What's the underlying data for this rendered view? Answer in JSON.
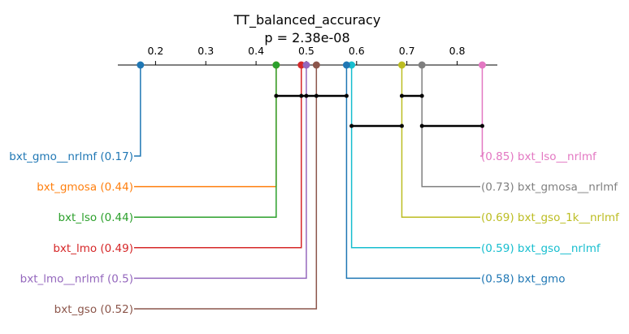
{
  "chart_data": {
    "type": "critical-difference",
    "title": "TT_balanced_accuracy",
    "subtitle": "p = 2.38e-08",
    "xlim": [
      0.125,
      0.88
    ],
    "ticks": [
      0.2,
      0.3,
      0.4,
      0.5,
      0.6,
      0.7,
      0.8
    ],
    "tick_labels": [
      "0.2",
      "0.3",
      "0.4",
      "0.5",
      "0.6",
      "0.7",
      "0.8"
    ],
    "methods": [
      {
        "name": "bxt_gmo__nrlmf",
        "value": 0.17,
        "label": "bxt_gmo__nrlmf (0.17)",
        "side": "left",
        "color": "#1f77b4"
      },
      {
        "name": "bxt_gmosa",
        "value": 0.44,
        "label": "bxt_gmosa (0.44)",
        "side": "left",
        "color": "#ff7f0e"
      },
      {
        "name": "bxt_lso",
        "value": 0.44,
        "label": "bxt_lso (0.44)",
        "side": "left",
        "color": "#2ca02c"
      },
      {
        "name": "bxt_lmo",
        "value": 0.49,
        "label": "bxt_lmo (0.49)",
        "side": "left",
        "color": "#d62728"
      },
      {
        "name": "bxt_lmo__nrlmf",
        "value": 0.5,
        "label": "bxt_lmo__nrlmf (0.5)",
        "side": "left",
        "color": "#9467bd"
      },
      {
        "name": "bxt_gso",
        "value": 0.52,
        "label": "bxt_gso (0.52)",
        "side": "left",
        "color": "#8c564b"
      },
      {
        "name": "bxt_lso__nrlmf",
        "value": 0.85,
        "label": "(0.85) bxt_lso__nrlmf",
        "side": "right",
        "color": "#e377c2"
      },
      {
        "name": "bxt_gmosa__nrlmf",
        "value": 0.73,
        "label": "(0.73) bxt_gmosa__nrlmf",
        "side": "right",
        "color": "#7f7f7f"
      },
      {
        "name": "bxt_gso_1k__nrlmf",
        "value": 0.69,
        "label": "(0.69) bxt_gso_1k__nrlmf",
        "side": "right",
        "color": "#bcbd22"
      },
      {
        "name": "bxt_gso__nrlmf",
        "value": 0.59,
        "label": "(0.59) bxt_gso__nrlmf",
        "side": "right",
        "color": "#17becf"
      },
      {
        "name": "bxt_gmo",
        "value": 0.58,
        "label": "(0.58) bxt_gmo",
        "side": "right",
        "color": "#1f77b4"
      }
    ],
    "cliques": [
      {
        "values": [
          0.44,
          0.49,
          0.5,
          0.52,
          0.58
        ]
      },
      {
        "values": [
          0.69,
          0.73
        ]
      },
      {
        "values": [
          0.59,
          0.69
        ]
      },
      {
        "values": [
          0.73,
          0.85
        ]
      }
    ]
  }
}
